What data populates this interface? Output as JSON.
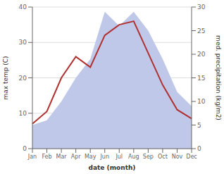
{
  "chart_data": {
    "type": "line",
    "xlabel": "date (month)",
    "ylabel": "max temp (C)",
    "y2label": "med. precipitation (kg/m2)",
    "categories": [
      "Jan",
      "Feb",
      "Mar",
      "Apr",
      "May",
      "Jun",
      "Jul",
      "Aug",
      "Sep",
      "Oct",
      "Nov",
      "Dec"
    ],
    "series": [
      {
        "type": "area",
        "axis": "y2",
        "color": "#bfc8e8",
        "values": [
          5,
          6,
          10,
          15,
          19,
          29,
          26,
          29,
          25,
          19,
          12,
          9
        ]
      },
      {
        "type": "line",
        "color": "#b03030",
        "values": [
          7,
          10.5,
          20,
          26,
          23,
          32,
          35,
          36,
          27,
          18,
          11,
          8.5
        ]
      }
    ],
    "ylim": [
      0,
      40
    ],
    "yticks": [
      0,
      10,
      20,
      30,
      40
    ],
    "y2lim": [
      0,
      30
    ],
    "y2ticks": [
      0,
      5,
      10,
      15,
      20,
      25,
      30
    ],
    "grid": "y"
  }
}
